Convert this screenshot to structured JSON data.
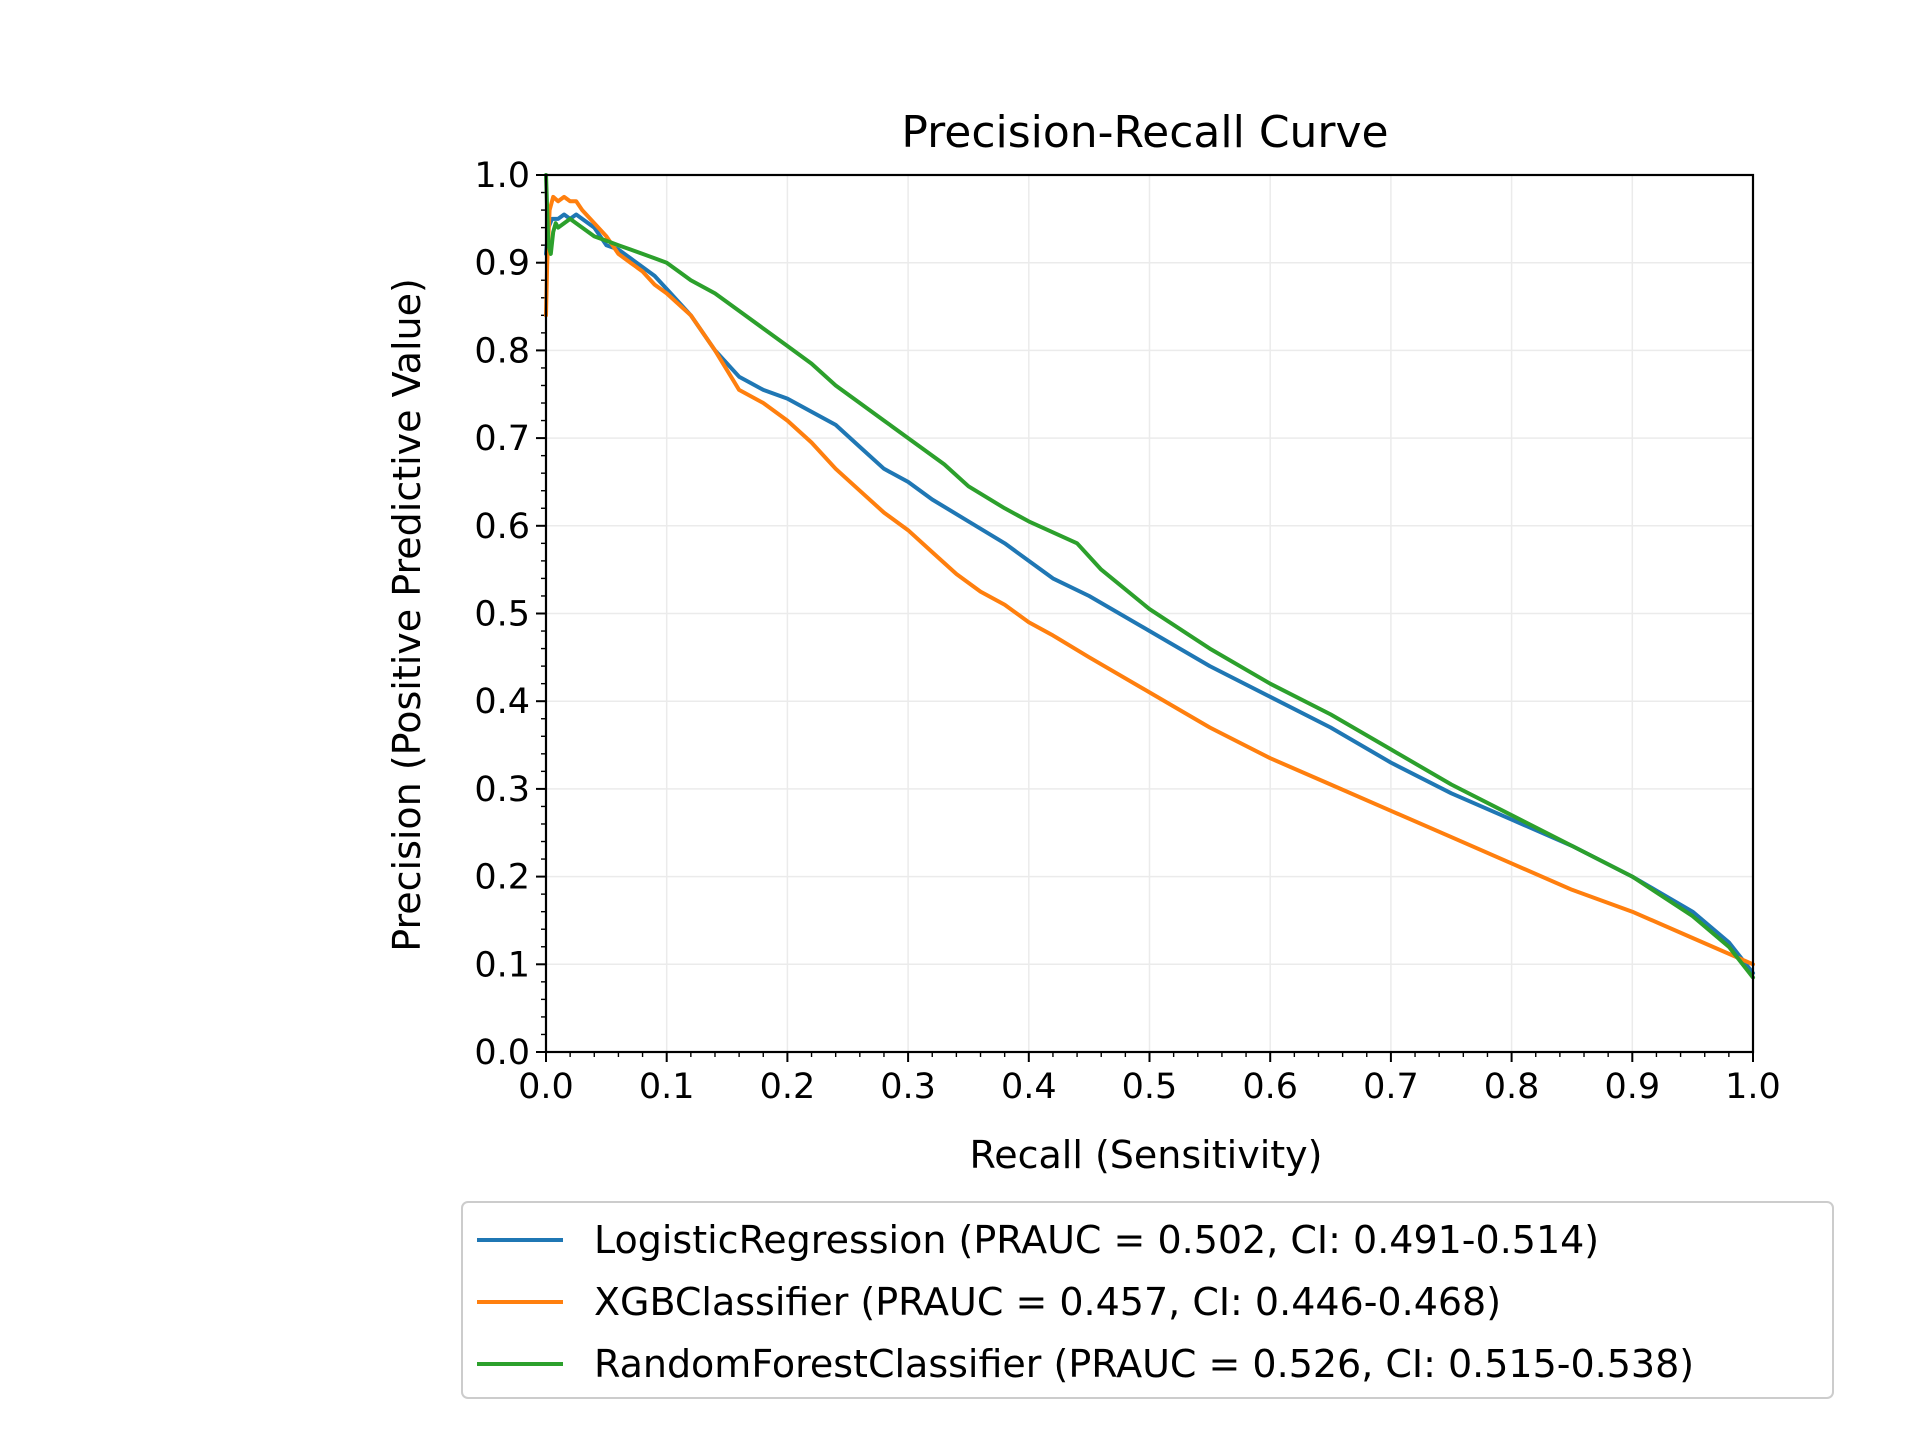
{
  "chart_data": {
    "type": "line",
    "title": "Precision-Recall Curve",
    "xlabel": "Recall (Sensitivity)",
    "ylabel": "Precision (Positive Predictive Value)",
    "xlim": [
      0.0,
      1.0
    ],
    "ylim": [
      0.0,
      1.0
    ],
    "xticks": [
      "0.0",
      "0.1",
      "0.2",
      "0.3",
      "0.4",
      "0.5",
      "0.6",
      "0.7",
      "0.8",
      "0.9",
      "1.0"
    ],
    "yticks": [
      "0.0",
      "0.1",
      "0.2",
      "0.3",
      "0.4",
      "0.5",
      "0.6",
      "0.7",
      "0.8",
      "0.9",
      "1.0"
    ],
    "grid": true,
    "legend_position": "below plot",
    "series": [
      {
        "name": "LogisticRegression (PRAUC = 0.502, CI: 0.491-0.514)",
        "color": "#1f77b4",
        "x": [
          0.0,
          0.002,
          0.005,
          0.01,
          0.015,
          0.02,
          0.025,
          0.03,
          0.04,
          0.05,
          0.06,
          0.07,
          0.08,
          0.09,
          0.1,
          0.12,
          0.14,
          0.16,
          0.18,
          0.2,
          0.22,
          0.24,
          0.26,
          0.28,
          0.3,
          0.32,
          0.35,
          0.38,
          0.4,
          0.42,
          0.45,
          0.5,
          0.55,
          0.6,
          0.65,
          0.7,
          0.75,
          0.8,
          0.85,
          0.9,
          0.95,
          0.98,
          1.0
        ],
        "y": [
          0.91,
          0.94,
          0.95,
          0.95,
          0.955,
          0.95,
          0.955,
          0.95,
          0.94,
          0.92,
          0.915,
          0.905,
          0.895,
          0.885,
          0.87,
          0.84,
          0.8,
          0.77,
          0.755,
          0.745,
          0.73,
          0.715,
          0.69,
          0.665,
          0.65,
          0.63,
          0.605,
          0.58,
          0.56,
          0.54,
          0.52,
          0.48,
          0.44,
          0.405,
          0.37,
          0.33,
          0.295,
          0.265,
          0.235,
          0.2,
          0.16,
          0.125,
          0.09
        ]
      },
      {
        "name": "XGBClassifier (PRAUC = 0.457, CI: 0.446-0.468)",
        "color": "#ff7f0e",
        "x": [
          0.0,
          0.001,
          0.003,
          0.006,
          0.01,
          0.015,
          0.02,
          0.025,
          0.03,
          0.04,
          0.05,
          0.06,
          0.07,
          0.08,
          0.09,
          0.1,
          0.12,
          0.14,
          0.16,
          0.18,
          0.2,
          0.22,
          0.24,
          0.26,
          0.28,
          0.3,
          0.32,
          0.34,
          0.36,
          0.38,
          0.4,
          0.42,
          0.45,
          0.5,
          0.55,
          0.6,
          0.65,
          0.7,
          0.75,
          0.8,
          0.85,
          0.9,
          0.95,
          1.0
        ],
        "y": [
          0.84,
          0.9,
          0.96,
          0.975,
          0.97,
          0.975,
          0.97,
          0.97,
          0.96,
          0.945,
          0.93,
          0.91,
          0.9,
          0.89,
          0.875,
          0.865,
          0.84,
          0.8,
          0.755,
          0.74,
          0.72,
          0.695,
          0.665,
          0.64,
          0.615,
          0.595,
          0.57,
          0.545,
          0.525,
          0.51,
          0.49,
          0.475,
          0.45,
          0.41,
          0.37,
          0.335,
          0.305,
          0.275,
          0.245,
          0.215,
          0.185,
          0.16,
          0.13,
          0.1
        ]
      },
      {
        "name": "RandomForestClassifier (PRAUC = 0.526, CI: 0.515-0.538)",
        "color": "#2ca02c",
        "x": [
          0.0,
          0.001,
          0.002,
          0.004,
          0.006,
          0.008,
          0.01,
          0.015,
          0.02,
          0.03,
          0.04,
          0.05,
          0.06,
          0.07,
          0.08,
          0.09,
          0.1,
          0.11,
          0.12,
          0.14,
          0.16,
          0.18,
          0.2,
          0.22,
          0.24,
          0.26,
          0.28,
          0.3,
          0.33,
          0.35,
          0.38,
          0.4,
          0.44,
          0.46,
          0.5,
          0.55,
          0.6,
          0.65,
          0.7,
          0.75,
          0.8,
          0.85,
          0.9,
          0.95,
          0.98,
          1.0
        ],
        "y": [
          1.0,
          0.96,
          0.92,
          0.91,
          0.935,
          0.945,
          0.94,
          0.945,
          0.95,
          0.94,
          0.93,
          0.925,
          0.92,
          0.915,
          0.91,
          0.905,
          0.9,
          0.89,
          0.88,
          0.865,
          0.845,
          0.825,
          0.805,
          0.785,
          0.76,
          0.74,
          0.72,
          0.7,
          0.67,
          0.645,
          0.62,
          0.605,
          0.58,
          0.55,
          0.505,
          0.46,
          0.42,
          0.385,
          0.345,
          0.305,
          0.27,
          0.235,
          0.2,
          0.155,
          0.12,
          0.085
        ]
      }
    ]
  }
}
